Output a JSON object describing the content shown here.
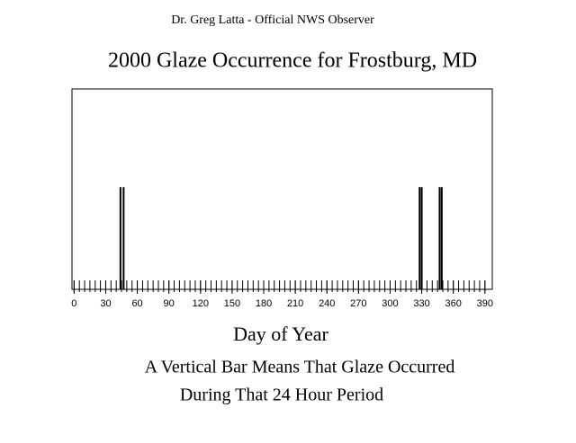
{
  "chart_data": {
    "type": "bar",
    "header": "Dr. Greg Latta - Official NWS Observer",
    "title": "2000 Glaze Occurrence for Frostburg, MD",
    "xlabel": "Day of Year",
    "annotation": [
      "A Vertical Bar Means That Glaze Occurred",
      "During That 24 Hour Period"
    ],
    "x": [
      44,
      47,
      328,
      330,
      347,
      349
    ],
    "values": [
      1,
      1,
      1,
      1,
      1,
      1
    ],
    "color": "#000000",
    "xlim": [
      -2,
      397
    ],
    "xticks": [
      0,
      30,
      60,
      90,
      120,
      150,
      180,
      210,
      240,
      270,
      300,
      330,
      360,
      390
    ],
    "xminor_step": 5,
    "ylim": [
      0,
      1.96
    ]
  }
}
